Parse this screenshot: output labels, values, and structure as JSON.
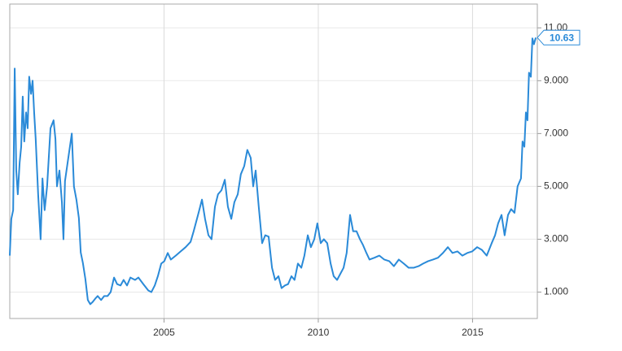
{
  "chart_data": {
    "type": "line",
    "color": "#2a8ad8",
    "grid": true,
    "xlim": [
      2000.0,
      2017.1
    ],
    "xticks": [
      2005,
      2010,
      2015
    ],
    "ylim": [
      0,
      11.9
    ],
    "yticks": [
      {
        "value": 1,
        "label": "1.000"
      },
      {
        "value": 3,
        "label": "3.000"
      },
      {
        "value": 5,
        "label": "5.000"
      },
      {
        "value": 7,
        "label": "7.000"
      },
      {
        "value": 9,
        "label": "9.000"
      },
      {
        "value": 11,
        "label": "11.00"
      }
    ],
    "x": [
      2000.0,
      2000.05,
      2000.11,
      2000.16,
      2000.21,
      2000.26,
      2000.32,
      2000.37,
      2000.42,
      2000.47,
      2000.53,
      2000.58,
      2000.63,
      2000.69,
      2000.74,
      2000.79,
      2000.84,
      2000.92,
      2001.0,
      2001.06,
      2001.13,
      2001.21,
      2001.32,
      2001.42,
      2001.48,
      2001.53,
      2001.61,
      2001.69,
      2001.74,
      2001.79,
      2001.9,
      2002.01,
      2002.08,
      2002.16,
      2002.24,
      2002.3,
      2002.37,
      2002.45,
      2002.53,
      2002.61,
      2002.69,
      2002.77,
      2002.85,
      2002.96,
      2003.06,
      2003.17,
      2003.27,
      2003.38,
      2003.48,
      2003.59,
      2003.69,
      2003.8,
      2003.91,
      2004.06,
      2004.17,
      2004.33,
      2004.49,
      2004.59,
      2004.7,
      2004.8,
      2004.91,
      2005.01,
      2005.12,
      2005.22,
      2005.38,
      2005.54,
      2005.7,
      2005.86,
      2005.96,
      2006.12,
      2006.23,
      2006.33,
      2006.44,
      2006.54,
      2006.65,
      2006.75,
      2006.86,
      2006.97,
      2007.07,
      2007.18,
      2007.28,
      2007.39,
      2007.49,
      2007.6,
      2007.7,
      2007.81,
      2007.89,
      2007.97,
      2008.07,
      2008.18,
      2008.28,
      2008.39,
      2008.5,
      2008.6,
      2008.71,
      2008.81,
      2008.92,
      2009.02,
      2009.13,
      2009.23,
      2009.34,
      2009.45,
      2009.55,
      2009.66,
      2009.76,
      2009.87,
      2009.97,
      2010.08,
      2010.18,
      2010.29,
      2010.4,
      2010.5,
      2010.61,
      2010.71,
      2010.82,
      2010.92,
      2011.03,
      2011.13,
      2011.24,
      2011.35,
      2011.45,
      2011.56,
      2011.66,
      2011.82,
      2011.98,
      2012.14,
      2012.3,
      2012.45,
      2012.61,
      2012.77,
      2012.93,
      2013.09,
      2013.25,
      2013.4,
      2013.56,
      2013.72,
      2013.88,
      2014.04,
      2014.2,
      2014.35,
      2014.51,
      2014.67,
      2014.83,
      2014.99,
      2015.15,
      2015.3,
      2015.46,
      2015.62,
      2015.73,
      2015.83,
      2015.94,
      2016.04,
      2016.15,
      2016.25,
      2016.36,
      2016.46,
      2016.57,
      2016.62,
      2016.68,
      2016.73,
      2016.78,
      2016.83,
      2016.89,
      2016.94,
      2016.99,
      2017.05
    ],
    "values": [
      2.38,
      3.77,
      4.1,
      9.46,
      5.6,
      4.7,
      5.9,
      6.5,
      8.4,
      6.7,
      7.8,
      7.2,
      9.15,
      8.5,
      9.0,
      7.8,
      6.8,
      4.7,
      3.0,
      5.3,
      4.1,
      5.0,
      7.2,
      7.5,
      6.8,
      5.0,
      5.6,
      4.4,
      3.0,
      5.2,
      6.1,
      7.0,
      5.0,
      4.5,
      3.8,
      2.5,
      2.1,
      1.5,
      0.7,
      0.54,
      0.63,
      0.75,
      0.85,
      0.7,
      0.85,
      0.85,
      1.0,
      1.55,
      1.3,
      1.25,
      1.46,
      1.25,
      1.55,
      1.46,
      1.55,
      1.3,
      1.06,
      1.0,
      1.25,
      1.6,
      2.08,
      2.17,
      2.48,
      2.23,
      2.38,
      2.54,
      2.7,
      2.9,
      3.3,
      4.0,
      4.5,
      3.77,
      3.15,
      3.0,
      4.23,
      4.7,
      4.85,
      5.25,
      4.23,
      3.77,
      4.4,
      4.7,
      5.46,
      5.77,
      6.38,
      6.08,
      5.0,
      5.6,
      4.23,
      2.85,
      3.15,
      3.1,
      1.92,
      1.46,
      1.6,
      1.15,
      1.25,
      1.3,
      1.6,
      1.46,
      2.08,
      1.92,
      2.38,
      3.15,
      2.7,
      3.0,
      3.6,
      2.85,
      3.0,
      2.85,
      2.08,
      1.6,
      1.46,
      1.68,
      1.92,
      2.48,
      3.92,
      3.3,
      3.3,
      3.0,
      2.78,
      2.48,
      2.23,
      2.3,
      2.38,
      2.23,
      2.17,
      1.98,
      2.23,
      2.08,
      1.92,
      1.92,
      1.98,
      2.08,
      2.17,
      2.23,
      2.3,
      2.48,
      2.7,
      2.48,
      2.54,
      2.38,
      2.48,
      2.54,
      2.7,
      2.6,
      2.38,
      2.85,
      3.15,
      3.6,
      3.92,
      3.15,
      3.92,
      4.14,
      4.0,
      5.0,
      5.3,
      6.7,
      6.5,
      7.8,
      7.5,
      9.3,
      9.15,
      10.6,
      10.38,
      10.63
    ]
  }
}
